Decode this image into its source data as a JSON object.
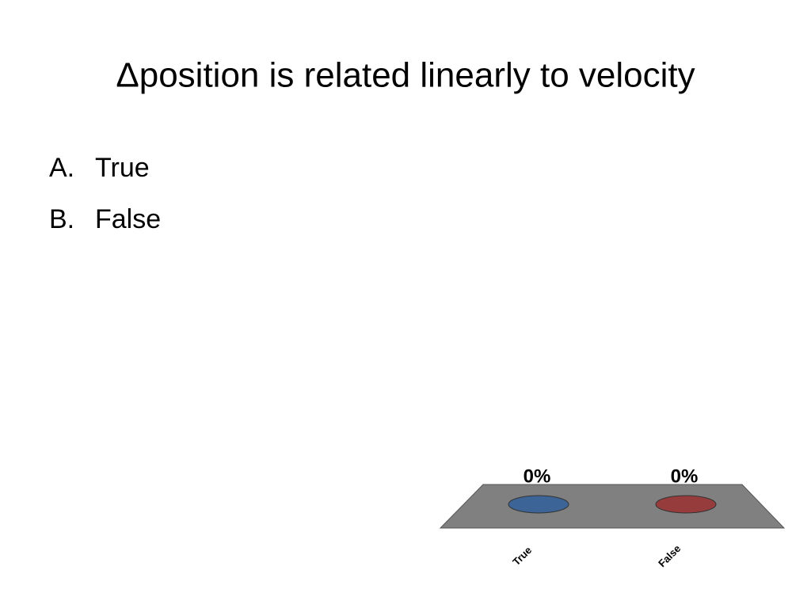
{
  "slide": {
    "title": "Δposition is related linearly to velocity",
    "options": [
      {
        "marker": "A.",
        "text": "True"
      },
      {
        "marker": "B.",
        "text": "False"
      }
    ]
  },
  "chart_data": {
    "type": "bar",
    "categories": [
      "True",
      "False"
    ],
    "values": [
      0,
      0
    ],
    "value_labels": [
      "0%",
      "0%"
    ],
    "colors": [
      "#3c6496",
      "#963c3c"
    ]
  }
}
